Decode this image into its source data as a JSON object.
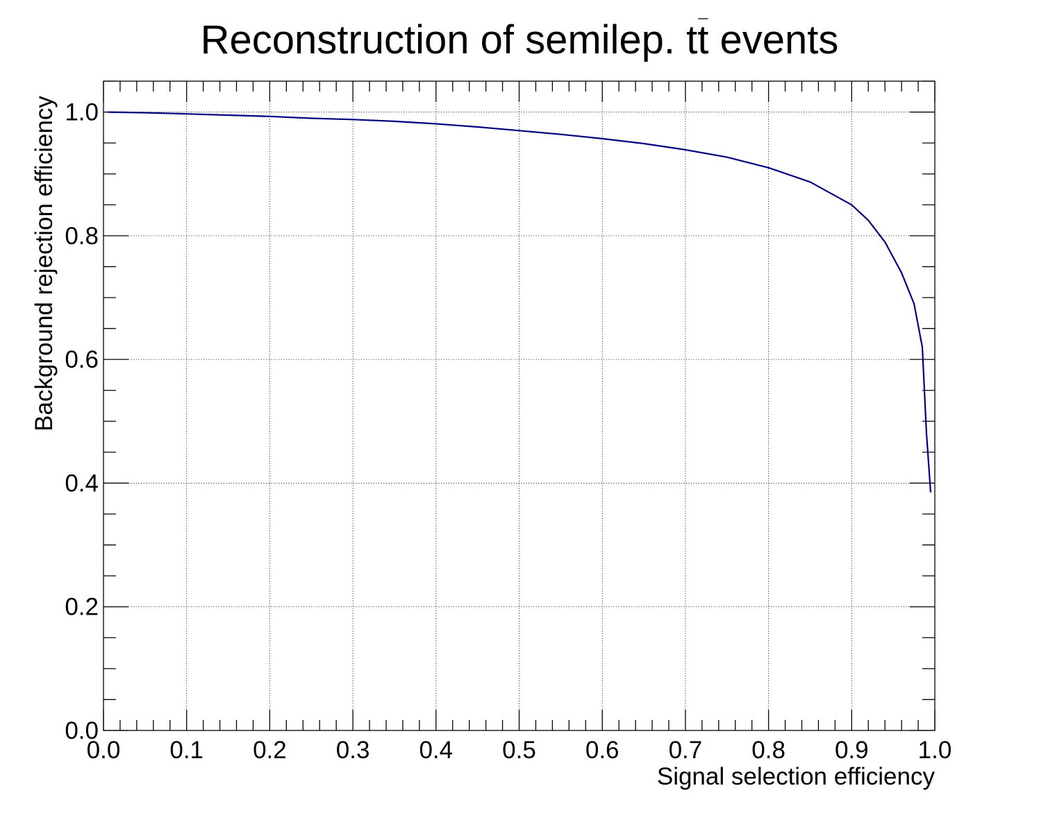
{
  "chart_data": {
    "type": "line",
    "title": "Reconstruction of semilep. tt̄ events",
    "title_main": "Reconstruction of semilep. t",
    "title_tbar": "t",
    "title_tail": " events",
    "xlabel": "Signal selection efficiency",
    "ylabel": "Background rejection efficiency",
    "xlim": [
      0.0,
      1.0
    ],
    "ylim": [
      0.0,
      1.05
    ],
    "xticks": [
      "0.0",
      "0.1",
      "0.2",
      "0.3",
      "0.4",
      "0.5",
      "0.6",
      "0.7",
      "0.8",
      "0.9",
      "1.0"
    ],
    "yticks": [
      "0.0",
      "0.2",
      "0.4",
      "0.6",
      "0.8",
      "1.0"
    ],
    "grid": true,
    "line_color": "#000080",
    "series": [
      {
        "x": [
          0.005,
          0.05,
          0.1,
          0.15,
          0.2,
          0.25,
          0.3,
          0.35,
          0.4,
          0.45,
          0.5,
          0.55,
          0.6,
          0.65,
          0.7,
          0.75,
          0.8,
          0.85,
          0.9,
          0.92,
          0.94,
          0.96,
          0.975,
          0.985,
          0.99,
          0.995
        ],
        "y": [
          1.0,
          0.999,
          0.997,
          0.995,
          0.993,
          0.99,
          0.988,
          0.985,
          0.981,
          0.976,
          0.97,
          0.964,
          0.957,
          0.949,
          0.939,
          0.927,
          0.91,
          0.887,
          0.85,
          0.825,
          0.79,
          0.74,
          0.69,
          0.62,
          0.48,
          0.385
        ]
      }
    ]
  }
}
